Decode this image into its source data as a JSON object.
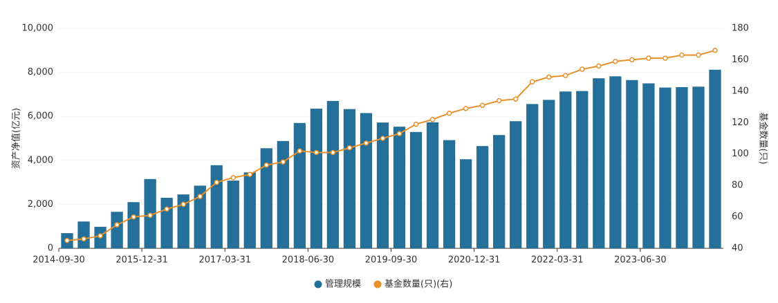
{
  "chart_data": {
    "type": "bar-line",
    "y_label": "资产净值(亿元)",
    "y2_label": "基金数量(只)",
    "categories": [
      "2014-09-30",
      null,
      null,
      null,
      null,
      "2015-12-31",
      null,
      null,
      null,
      null,
      "2017-03-31",
      null,
      null,
      null,
      null,
      "2018-06-30",
      null,
      null,
      null,
      null,
      "2019-09-30",
      null,
      null,
      null,
      null,
      "2020-12-31",
      null,
      null,
      null,
      null,
      "2022-03-31",
      null,
      null,
      null,
      null,
      "2023-06-30",
      null,
      null,
      null,
      null
    ],
    "series": [
      {
        "name": "管理规模",
        "color": "#23709a",
        "type": "bar",
        "values": [
          690,
          1220,
          980,
          1660,
          2100,
          3150,
          2300,
          2450,
          2850,
          3780,
          3080,
          3450,
          4550,
          4880,
          5700,
          6350,
          6700,
          6330,
          6150,
          5720,
          5530,
          5290,
          5730,
          4920,
          4050,
          4650,
          5150,
          5780,
          6560,
          6750,
          7130,
          7150,
          7730,
          7820,
          7650,
          7500,
          7310,
          7330,
          7350,
          8120
        ]
      },
      {
        "name": "基金数量(只)(右)",
        "color": "#e8902b",
        "type": "line",
        "axis": "y2",
        "values": [
          45,
          46,
          48,
          55,
          60,
          61,
          65,
          68,
          73,
          82,
          85,
          87,
          93,
          95,
          102,
          101,
          101,
          104,
          107,
          110,
          113,
          119,
          122,
          126,
          129,
          131,
          134,
          135,
          146,
          149,
          150,
          154,
          156,
          159,
          160,
          161,
          161,
          163,
          163,
          166
        ]
      }
    ],
    "ylim": [
      0,
      10000
    ],
    "yticks": [
      0,
      {
        "value": 2000,
        "label": "2,000"
      },
      {
        "value": 4000,
        "label": "4,000"
      },
      {
        "value": 6000,
        "label": "6,000"
      },
      {
        "value": 8000,
        "label": "8,000"
      },
      {
        "value": 10000,
        "label": "10,000"
      }
    ],
    "y2lim": [
      40,
      180
    ],
    "y2ticks": [
      40,
      60,
      80,
      100,
      120,
      140,
      160,
      180
    ],
    "grid": true
  }
}
